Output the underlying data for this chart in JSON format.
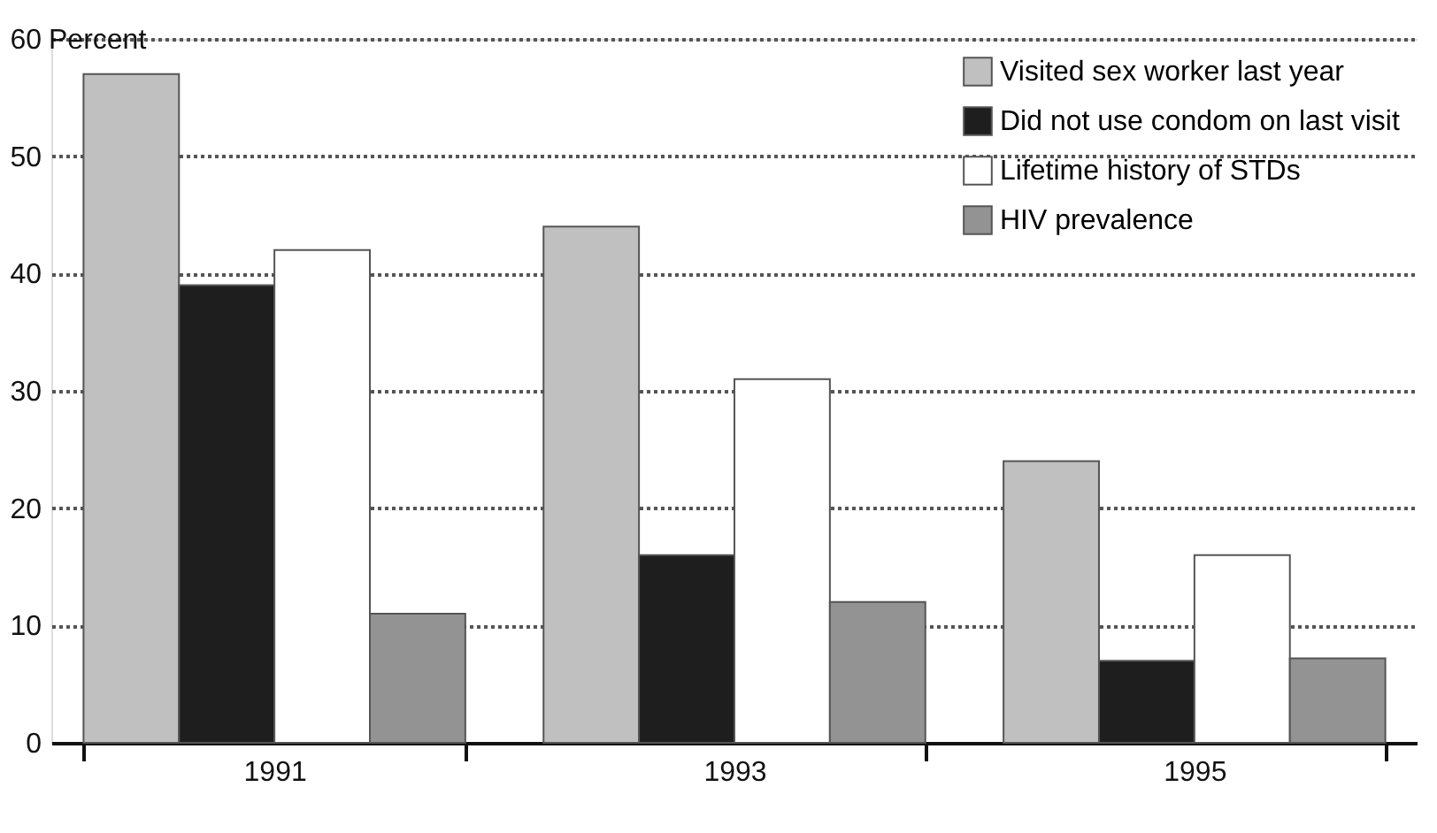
{
  "chart_data": {
    "type": "bar",
    "ylabel": "Percent",
    "categories": [
      "1991",
      "1993",
      "1995"
    ],
    "series": [
      {
        "name": "Visited sex worker last year",
        "color": "#c0c0c0",
        "values": [
          57,
          44,
          24
        ]
      },
      {
        "name": "Did not use condom on last visit",
        "color": "#1e1e1e",
        "values": [
          39,
          16,
          7
        ]
      },
      {
        "name": "Lifetime history of STDs",
        "color": "#ffffff",
        "values": [
          42,
          31,
          16
        ]
      },
      {
        "name": "HIV prevalence",
        "color": "#939393",
        "values": [
          11,
          12,
          7.2
        ]
      }
    ],
    "ylim": [
      0,
      60
    ],
    "yticks": [
      0,
      10,
      20,
      30,
      40,
      50,
      60
    ],
    "grid": "y",
    "legend": "top right"
  }
}
